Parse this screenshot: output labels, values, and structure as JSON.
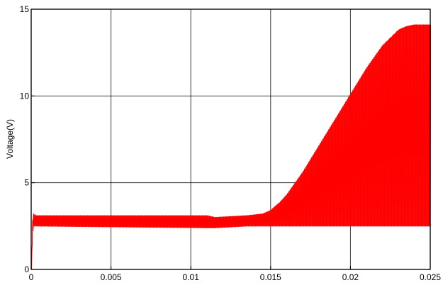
{
  "chart_data": {
    "type": "line",
    "title": "",
    "xlabel": "",
    "ylabel": "Voltage(V)",
    "xlim": [
      0,
      0.025
    ],
    "ylim": [
      0,
      15
    ],
    "grid": true,
    "x_ticks": [
      0,
      0.005,
      0.01,
      0.015,
      0.02,
      0.025
    ],
    "x_tick_labels": [
      "0",
      "0.005",
      "0.01",
      "0.015",
      "0.02",
      "0.025"
    ],
    "y_ticks": [
      0,
      5,
      10,
      15
    ],
    "y_tick_labels": [
      "0",
      "5",
      "10",
      "15"
    ],
    "series": [
      {
        "color": "#ff0000",
        "x": [
          0,
          0.0001,
          0.0003,
          0.011,
          0.0115,
          0.0135,
          0.0145,
          0.015,
          0.0155,
          0.016,
          0.017,
          0.018,
          0.019,
          0.02,
          0.021,
          0.022,
          0.023,
          0.0235,
          0.024,
          0.025
        ],
        "upper": [
          0,
          3.2,
          3.1,
          3.1,
          3.0,
          3.1,
          3.2,
          3.4,
          3.8,
          4.3,
          5.6,
          7.1,
          8.6,
          10.1,
          11.6,
          12.9,
          13.8,
          14.0,
          14.1,
          14.1
        ],
        "lower": [
          0,
          2.5,
          2.5,
          2.4,
          2.4,
          2.5,
          2.5,
          2.5,
          2.5,
          2.5,
          2.5,
          2.5,
          2.5,
          2.5,
          2.5,
          2.5,
          2.5,
          2.5,
          2.5,
          2.5
        ]
      }
    ]
  }
}
